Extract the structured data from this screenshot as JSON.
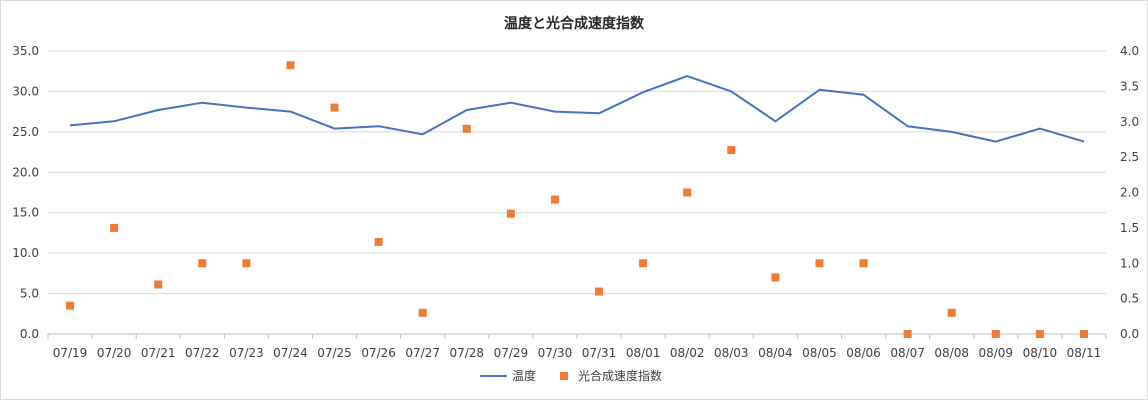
{
  "chart_data": {
    "type": "line",
    "title": "温度と光合成速度指数",
    "x": [
      "07/19",
      "07/20",
      "07/21",
      "07/22",
      "07/23",
      "07/24",
      "07/25",
      "07/26",
      "07/27",
      "07/28",
      "07/29",
      "07/30",
      "07/31",
      "08/01",
      "08/02",
      "08/03",
      "08/04",
      "08/05",
      "08/06",
      "08/07",
      "08/08",
      "08/09",
      "08/10",
      "08/11"
    ],
    "y_left": {
      "min": 0,
      "max": 35,
      "step": 5,
      "ticks": [
        "0.0",
        "5.0",
        "10.0",
        "15.0",
        "20.0",
        "25.0",
        "30.0",
        "35.0"
      ]
    },
    "y_right": {
      "min": 0,
      "max": 4,
      "step": 0.5,
      "ticks": [
        "0.0",
        "0.5",
        "1.0",
        "1.5",
        "2.0",
        "2.5",
        "3.0",
        "3.5",
        "4.0"
      ]
    },
    "grid": true,
    "legend_position": "bottom",
    "series": [
      {
        "name": "温度",
        "type": "line",
        "axis": "left",
        "color": "#4472c4",
        "values": [
          25.8,
          26.3,
          27.7,
          28.6,
          28.0,
          27.5,
          25.4,
          25.7,
          24.7,
          27.7,
          28.6,
          27.5,
          27.3,
          29.9,
          31.9,
          30.0,
          26.3,
          30.2,
          29.6,
          25.7,
          25.0,
          23.8,
          25.4,
          23.8
        ]
      },
      {
        "name": "光合成速度指数",
        "type": "scatter",
        "axis": "right",
        "color": "#ed7d31",
        "values": [
          0.4,
          1.5,
          0.7,
          1.0,
          1.0,
          3.8,
          3.2,
          1.3,
          0.3,
          2.9,
          1.7,
          1.9,
          0.6,
          1.0,
          2.0,
          2.6,
          0.8,
          1.0,
          1.0,
          0.0,
          0.3,
          0.0,
          0.0,
          0.0
        ]
      }
    ]
  }
}
